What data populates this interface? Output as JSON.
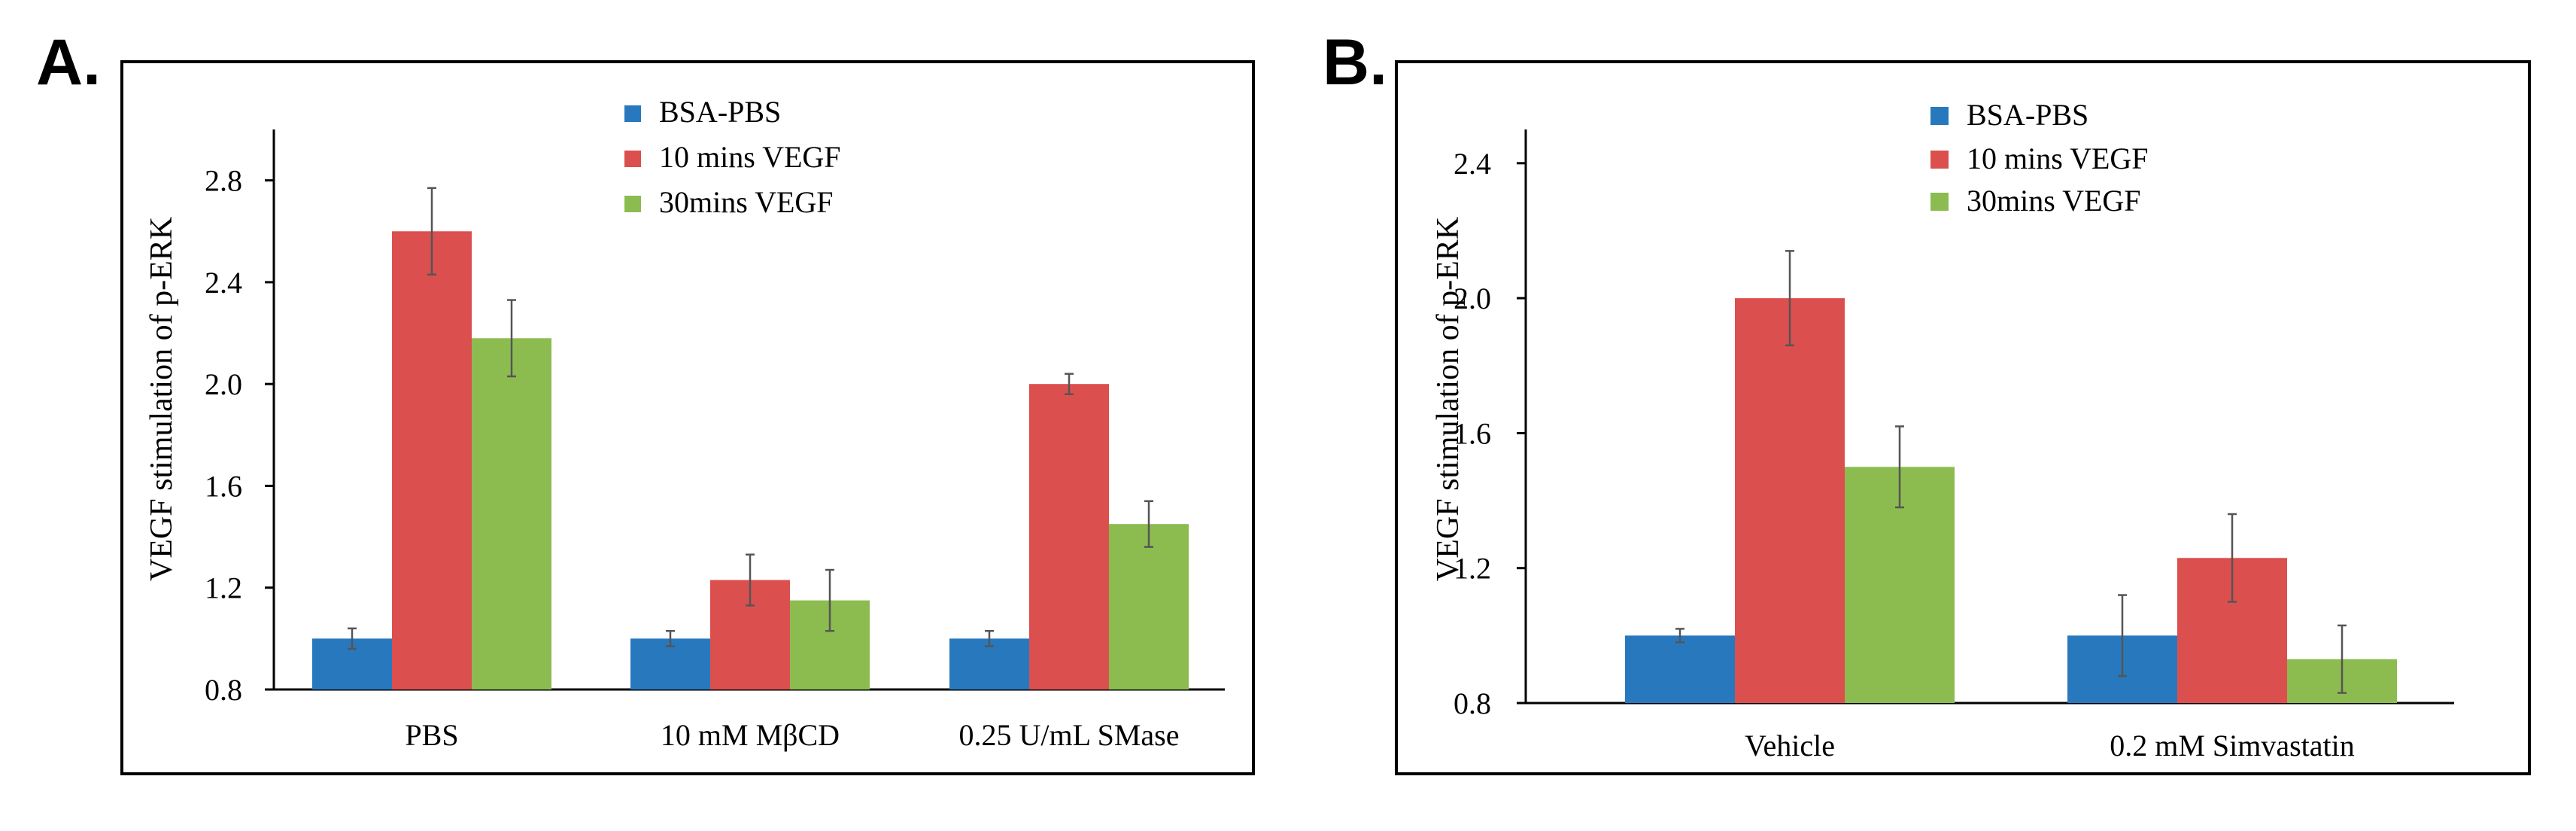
{
  "panels": [
    {
      "letter": "A.",
      "chart_data": {
        "type": "bar",
        "title": "",
        "xlabel": "",
        "ylabel": "VEGF stimulation of p-ERK",
        "categories": [
          "PBS",
          "10 mM MβCD",
          "0.25 U/mL SMase"
        ],
        "yticks": [
          "0.8",
          "1.2",
          "1.6",
          "2.0",
          "2.4",
          "2.8"
        ],
        "ylim": [
          0.8,
          3.0
        ],
        "series": [
          {
            "name": "BSA-PBS",
            "color": "#2878be",
            "values": [
              1.0,
              1.0,
              1.0
            ],
            "errors": [
              0.04,
              0.03,
              0.03
            ]
          },
          {
            "name": "10 mins VEGF",
            "color": "#dc4f4f",
            "values": [
              2.6,
              1.23,
              2.0
            ],
            "errors": [
              0.17,
              0.1,
              0.04
            ]
          },
          {
            "name": "30mins VEGF",
            "color": "#8cbc50",
            "values": [
              2.18,
              1.15,
              1.45
            ],
            "errors": [
              0.15,
              0.12,
              0.09
            ]
          }
        ],
        "legend_position": "top-center"
      }
    },
    {
      "letter": "B.",
      "chart_data": {
        "type": "bar",
        "title": "",
        "xlabel": "",
        "ylabel": "VEGF stimulation of p-ERK",
        "categories": [
          "Vehicle",
          "0.2 mM Simvastatin"
        ],
        "yticks": [
          "0.8",
          "1.2",
          "1.6",
          "2.0",
          "2.4"
        ],
        "ylim": [
          0.8,
          2.5
        ],
        "series": [
          {
            "name": "BSA-PBS",
            "color": "#2878be",
            "values": [
              1.0,
              1.0
            ],
            "errors": [
              0.02,
              0.12
            ]
          },
          {
            "name": "10 mins VEGF",
            "color": "#dc4f4f",
            "values": [
              2.0,
              1.23
            ],
            "errors": [
              0.14,
              0.13
            ]
          },
          {
            "name": "30mins VEGF",
            "color": "#8cbc50",
            "values": [
              1.5,
              0.93
            ],
            "errors": [
              0.12,
              0.1
            ]
          }
        ],
        "legend_position": "top-center"
      }
    }
  ]
}
